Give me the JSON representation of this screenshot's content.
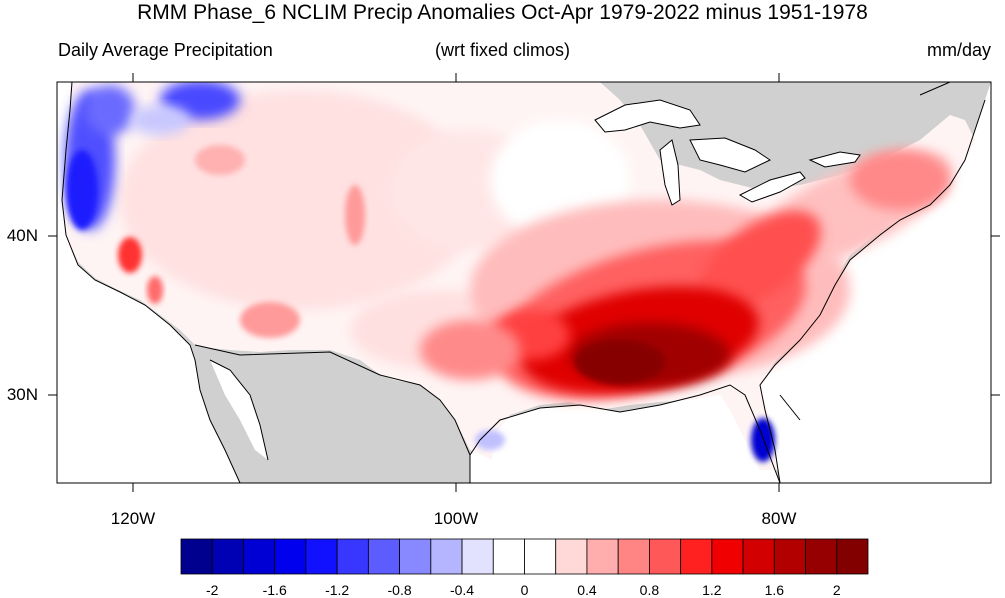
{
  "title": "RMM Phase_6 NCLIM Precip Anomalies Oct-Apr 1979-2022 minus 1951-1978",
  "subtitle_left": "Daily Average Precipitation",
  "subtitle_center": "(wrt fixed climos)",
  "subtitle_right": "mm/day",
  "lat_labels": [
    "40N",
    "30N"
  ],
  "lon_labels": [
    "120W",
    "100W",
    "80W"
  ],
  "colorbar": {
    "labels": [
      "-2",
      "-1.6",
      "-1.2",
      "-0.8",
      "-0.4",
      "0",
      "0.4",
      "0.8",
      "1.2",
      "1.6",
      "2"
    ],
    "colors": [
      "#00008f",
      "#0000b5",
      "#0000d4",
      "#0000ee",
      "#1111ff",
      "#3737ff",
      "#5c5cff",
      "#8888ff",
      "#b4b4ff",
      "#e2e2ff",
      "#ffffff",
      "#ffffff",
      "#ffd8d8",
      "#ffadad",
      "#ff8585",
      "#ff5858",
      "#ff2020",
      "#f00000",
      "#d20000",
      "#b20000",
      "#970000",
      "#830000"
    ]
  },
  "map": {
    "extent": {
      "lon": [
        -125,
        -66
      ],
      "lat": [
        24.5,
        49.5
      ]
    },
    "land_fill": "#d0d0d0",
    "features": [
      "Pacific Northwest wet anomaly (blue)",
      "Southeast US dry-to-wet anomaly (dark red)",
      "South Florida negative anomaly (blue)"
    ]
  }
}
